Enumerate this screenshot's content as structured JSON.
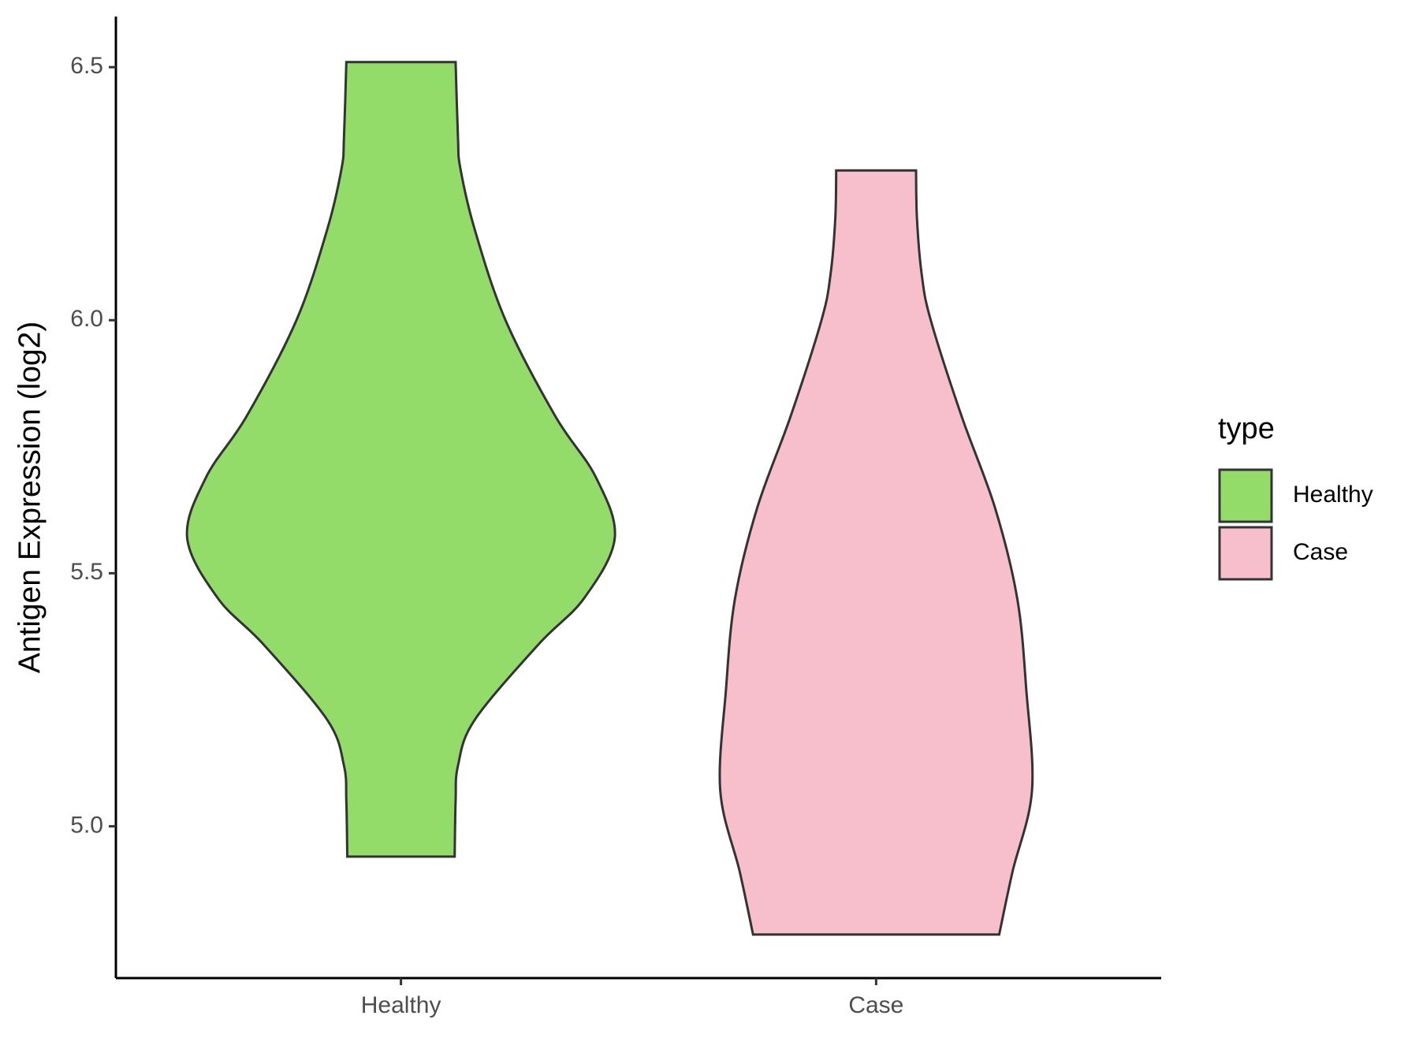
{
  "chart_data": {
    "type": "violin",
    "y_label": "Antigen Expression (log2)",
    "categories": [
      "Healthy",
      "Case"
    ],
    "legend_title": "type",
    "legend_position": "right",
    "ylim": [
      4.7,
      6.6
    ],
    "yticks": [
      {
        "value": 5,
        "label": "5.0"
      },
      5.5,
      {
        "value": 6,
        "label": "6.0"
      },
      6.5
    ],
    "series": [
      {
        "name": "Healthy",
        "color": "#93dc6a",
        "y": [
          6.51,
          6.36,
          6.3,
          6.18,
          6.0,
          5.81,
          5.69,
          5.57,
          5.45,
          5.36,
          5.21,
          5.12,
          5.05,
          4.94
        ],
        "half_width": [
          0.115,
          0.12,
          0.125,
          0.155,
          0.22,
          0.325,
          0.41,
          0.45,
          0.385,
          0.29,
          0.155,
          0.12,
          0.115,
          0.113
        ]
      },
      {
        "name": "Case",
        "color": "#f7bfcb",
        "y": [
          6.296,
          6.2,
          6.09,
          6.0,
          5.81,
          5.63,
          5.45,
          5.27,
          5.07,
          4.91,
          4.786
        ],
        "half_width": [
          0.084,
          0.086,
          0.096,
          0.115,
          0.18,
          0.25,
          0.297,
          0.316,
          0.328,
          0.287,
          0.259
        ]
      }
    ]
  }
}
